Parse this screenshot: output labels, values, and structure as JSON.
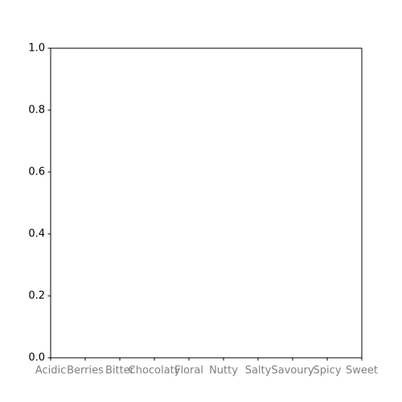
{
  "chart_data": {
    "type": "line",
    "categories": [
      "Acidic",
      "Berries",
      "Bitter",
      "Chocolaty",
      "Floral",
      "Nutty",
      "Salty",
      "Savoury",
      "Spicy",
      "Sweet"
    ],
    "ylim": [
      0,
      1
    ],
    "yticks": [
      {
        "value": 0,
        "label": "0.0"
      },
      {
        "value": 0.2,
        "label": "0.2"
      },
      {
        "value": 0.4,
        "label": "0.4"
      },
      {
        "value": 0.6,
        "label": "0.6"
      },
      {
        "value": 0.8,
        "label": "0.8"
      },
      {
        "value": 1,
        "label": "1.0"
      }
    ],
    "series": []
  }
}
